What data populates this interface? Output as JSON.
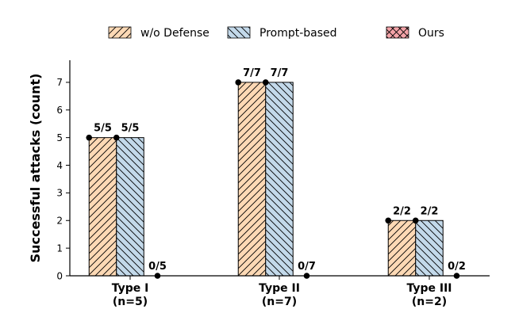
{
  "chart_data": {
    "type": "bar",
    "categories": [
      "Type I\n(n=5)",
      "Type II\n(n=7)",
      "Type III\n(n=2)"
    ],
    "series": [
      {
        "name": "w/o Defense",
        "values": [
          5,
          7,
          2
        ],
        "labels": [
          "5/5",
          "7/7",
          "2/2"
        ],
        "color": "#fdd9b5",
        "hatch": "forward"
      },
      {
        "name": "Prompt-based",
        "values": [
          5,
          7,
          2
        ],
        "labels": [
          "5/5",
          "7/7",
          "2/2"
        ],
        "color": "#c3d9ea",
        "hatch": "backward"
      },
      {
        "name": "Ours",
        "values": [
          0,
          0,
          0
        ],
        "labels": [
          "0/5",
          "0/7",
          "0/2"
        ],
        "color": "#f4a3a8",
        "hatch": "cross"
      }
    ],
    "xlabel": "",
    "ylabel": "Successful attacks (count)",
    "ylim": [
      0,
      7.8
    ],
    "yticks": [
      0,
      1,
      2,
      3,
      4,
      5,
      6,
      7
    ],
    "legend": "top-center",
    "grid": false
  }
}
